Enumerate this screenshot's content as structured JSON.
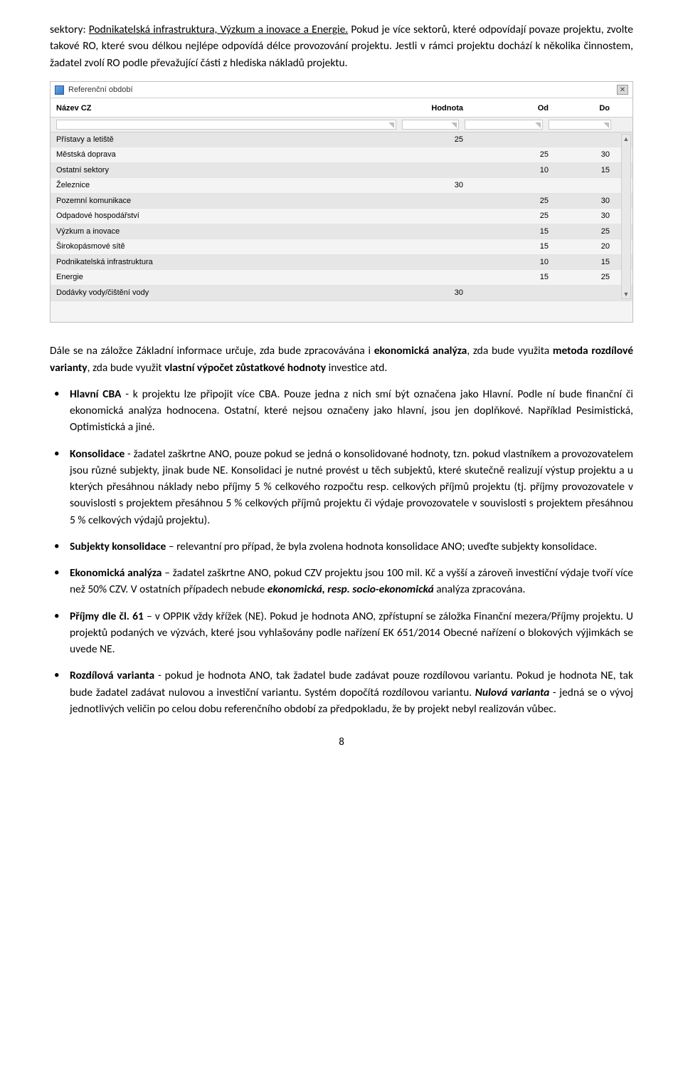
{
  "intro1_a": "sektory: ",
  "intro1_b_underline": "Podnikatelská infrastruktura, Výzkum a inovace a Energie.",
  "intro1_c": " Pokud je více sektorů, které odpovídají povaze projektu, zvolte takové RO, které svou délkou nejlépe odpovídá délce provozování projektu. Jestli v rámci projektu dochází k několika činnostem, žadatel zvolí RO podle převažující části z hlediska nákladů projektu.",
  "window": {
    "title": "Referenční období",
    "columns": {
      "nazev": "Název CZ",
      "hodnota": "Hodnota",
      "od": "Od",
      "do": "Do"
    },
    "rows": [
      {
        "nazev": "Přístavy a letiště",
        "hodnota": "25",
        "od": "",
        "do": "",
        "shade": "dark"
      },
      {
        "nazev": "Městská doprava",
        "hodnota": "",
        "od": "25",
        "do": "30",
        "shade": "light"
      },
      {
        "nazev": "Ostatní sektory",
        "hodnota": "",
        "od": "10",
        "do": "15",
        "shade": "dark"
      },
      {
        "nazev": "Železnice",
        "hodnota": "30",
        "od": "",
        "do": "",
        "shade": "light"
      },
      {
        "nazev": "Pozemní komunikace",
        "hodnota": "",
        "od": "25",
        "do": "30",
        "shade": "dark"
      },
      {
        "nazev": "Odpadové hospodářství",
        "hodnota": "",
        "od": "25",
        "do": "30",
        "shade": "light"
      },
      {
        "nazev": "Výzkum a inovace",
        "hodnota": "",
        "od": "15",
        "do": "25",
        "shade": "dark"
      },
      {
        "nazev": "Širokopásmové sítě",
        "hodnota": "",
        "od": "15",
        "do": "20",
        "shade": "light"
      },
      {
        "nazev": "Podnikatelská infrastruktura",
        "hodnota": "",
        "od": "10",
        "do": "15",
        "shade": "dark"
      },
      {
        "nazev": "Energie",
        "hodnota": "",
        "od": "15",
        "do": "25",
        "shade": "light"
      },
      {
        "nazev": "Dodávky vody/čištění vody",
        "hodnota": "30",
        "od": "",
        "do": "",
        "shade": "dark"
      }
    ]
  },
  "mid_a": "Dále se na záložce Základní informace určuje, zda bude zpracovávána i ",
  "mid_b_bold": "ekonomická analýza",
  "mid_c": ", zda bude využita ",
  "mid_d_bold": "metoda rozdílové varianty",
  "mid_e": ", zda bude využit ",
  "mid_f_bold": "vlastní výpočet zůstatkové hodnoty",
  "mid_g": " investice atd.",
  "b1_a_bold": "Hlavní CBA",
  "b1_b": " - k projektu lze připojit více CBA. Pouze jedna z nich smí být označena jako Hlavní. Podle ní bude finanční či ekonomická analýza hodnocena. Ostatní, které nejsou označeny jako hlavní, jsou jen doplňkové. Například Pesimistická, Optimistická a jiné.",
  "b2_a_bold": "Konsolidace",
  "b2_b": " - žadatel zaškrtne ANO, pouze pokud se jedná o konsolidované hodnoty, tzn. pokud vlastníkem a provozovatelem jsou různé subjekty, jinak bude NE. Konsolidaci je nutné provést u těch subjektů, které skutečně realizují výstup projektu a u kterých přesáhnou náklady nebo příjmy 5 % celkového rozpočtu resp. celkových příjmů projektu (tj. příjmy provozovatele v souvislosti s projektem přesáhnou 5 % celkových příjmů projektu či výdaje provozovatele v souvislosti s projektem přesáhnou 5 % celkových výdajů projektu).",
  "b3_a_bold": "Subjekty konsolidace",
  "b3_b": " – relevantní pro případ, že byla zvolena hodnota konsolidace ANO; uveďte subjekty konsolidace.",
  "b4_a_bold": "Ekonomická analýza",
  "b4_b": " – žadatel zaškrtne ANO, pokud CZV projektu jsou 100 mil. Kč a vyšší a zároveň investiční výdaje tvoří více než 50% CZV. V ostatních případech nebude ",
  "b4_c_bolditalic": "ekonomická, resp. socio-ekonomická",
  "b4_d": " analýza zpracována.",
  "b5_a_bold": "Příjmy dle čl. 61",
  "b5_b": " – v OPPIK vždy křížek (NE). Pokud je hodnota ANO, zpřístupní se záložka Finanční mezera/Příjmy projektu. U projektů podaných ve výzvách, které jsou vyhlašovány podle nařízení EK 651/2014 Obecné nařízení o blokových výjimkách se uvede NE.",
  "b6_a_bold": "Rozdílová varianta",
  "b6_b": " - pokud je hodnota ANO, tak žadatel bude zadávat pouze rozdílovou variantu. Pokud je hodnota NE, tak bude žadatel zadávat nulovou a investiční variantu. Systém dopočítá rozdílovou variantu. ",
  "b6_c_bolditalic": "Nulová varianta",
  "b6_d": " - jedná se o vývoj jednotlivých veličin po celou dobu referenčního období za předpokladu, že by projekt nebyl realizován vůbec.",
  "page_number": "8"
}
